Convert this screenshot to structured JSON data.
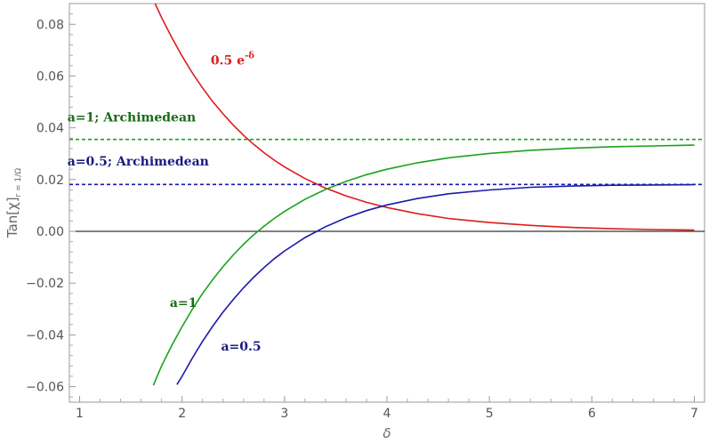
{
  "chart_data": {
    "type": "line",
    "xlabel": "δ",
    "ylabel": {
      "main": "Tan[χ]",
      "sub": "r = 1/Ω"
    },
    "xlim": [
      0.9,
      7.1
    ],
    "ylim": [
      -0.066,
      0.088
    ],
    "x_ticks": [
      1,
      2,
      3,
      4,
      5,
      6,
      7
    ],
    "y_ticks": [
      -0.06,
      -0.04,
      -0.02,
      0.0,
      0.02,
      0.04,
      0.06,
      0.08
    ],
    "x_tick_labels": [
      "1",
      "2",
      "3",
      "4",
      "5",
      "6",
      "7"
    ],
    "y_tick_labels": [
      "−0.06",
      "−0.04",
      "−0.02",
      "0.00",
      "0.02",
      "0.04",
      "0.06",
      "0.08"
    ],
    "frame": true,
    "grid": false,
    "zero_line": true,
    "series": [
      {
        "name": "0.5 e-δ",
        "color": "#dd1c1c",
        "style": "solid",
        "x": [
          1.73,
          1.8,
          1.9,
          2.0,
          2.1,
          2.2,
          2.3,
          2.4,
          2.5,
          2.6,
          2.7,
          2.8,
          2.9,
          3.0,
          3.2,
          3.4,
          3.6,
          3.8,
          4.0,
          4.3,
          4.6,
          5.0,
          5.4,
          5.8,
          6.2,
          6.6,
          7.0
        ],
        "y": [
          0.0886,
          0.0826,
          0.0748,
          0.0677,
          0.0612,
          0.0554,
          0.0501,
          0.0454,
          0.041,
          0.0371,
          0.0336,
          0.0304,
          0.0275,
          0.0249,
          0.0204,
          0.0167,
          0.0137,
          0.0112,
          0.0092,
          0.0068,
          0.005,
          0.0034,
          0.0023,
          0.0015,
          0.001,
          0.0007,
          0.0005
        ]
      },
      {
        "name": "a=1",
        "color": "#1aa31a",
        "style": "solid",
        "x": [
          1.72,
          1.8,
          1.9,
          2.0,
          2.1,
          2.2,
          2.3,
          2.4,
          2.5,
          2.6,
          2.7,
          2.8,
          2.9,
          3.0,
          3.2,
          3.4,
          3.6,
          3.8,
          4.0,
          4.3,
          4.6,
          5.0,
          5.4,
          5.8,
          6.2,
          6.6,
          7.0
        ],
        "y": [
          -0.0595,
          -0.052,
          -0.044,
          -0.0368,
          -0.0301,
          -0.024,
          -0.0186,
          -0.0136,
          -0.0091,
          -0.005,
          -0.0013,
          0.002,
          0.005,
          0.0077,
          0.0124,
          0.0162,
          0.0193,
          0.0219,
          0.024,
          0.0265,
          0.0284,
          0.0301,
          0.0313,
          0.0321,
          0.0327,
          0.033,
          0.0333
        ]
      },
      {
        "name": "a=0.5",
        "color": "#1a1aaa",
        "style": "solid",
        "x": [
          1.95,
          2.0,
          2.1,
          2.2,
          2.3,
          2.4,
          2.5,
          2.6,
          2.7,
          2.8,
          2.9,
          3.0,
          3.2,
          3.4,
          3.6,
          3.8,
          4.0,
          4.3,
          4.6,
          5.0,
          5.4,
          5.8,
          6.2,
          6.6,
          7.0
        ],
        "y": [
          -0.0592,
          -0.056,
          -0.049,
          -0.0425,
          -0.0366,
          -0.0312,
          -0.0263,
          -0.0218,
          -0.0177,
          -0.014,
          -0.0106,
          -0.0076,
          -0.0024,
          0.0018,
          0.0052,
          0.008,
          0.0102,
          0.0127,
          0.0145,
          0.016,
          0.017,
          0.0175,
          0.0178,
          0.0179,
          0.018
        ]
      },
      {
        "name": "a=1; Archimedean",
        "color": "#1aa31a",
        "style": "dashed",
        "x": [
          0.9,
          7.1
        ],
        "y": [
          0.0355,
          0.0355
        ]
      },
      {
        "name": "a=0.5; Archimedean",
        "color": "#1a1aaa",
        "style": "dashed",
        "x": [
          0.9,
          7.1
        ],
        "y": [
          0.0181,
          0.0181
        ]
      }
    ],
    "annotations": [
      {
        "text": "0.5 e",
        "superscript": "-δ",
        "x": 2.28,
        "y": 0.0645,
        "color": "#dd1c1c"
      },
      {
        "text": "a=1; Archimedean",
        "x": 0.88,
        "y": 0.0425,
        "color": "#1a6b1a"
      },
      {
        "text": "a=0.5; Archimedean",
        "x": 0.88,
        "y": 0.0254,
        "color": "#1a1a80"
      },
      {
        "text": "a=1",
        "x": 1.88,
        "y": -0.0292,
        "color": "#1a6b1a"
      },
      {
        "text": "a=0.5",
        "x": 2.38,
        "y": -0.046,
        "color": "#1a1a80"
      }
    ]
  }
}
